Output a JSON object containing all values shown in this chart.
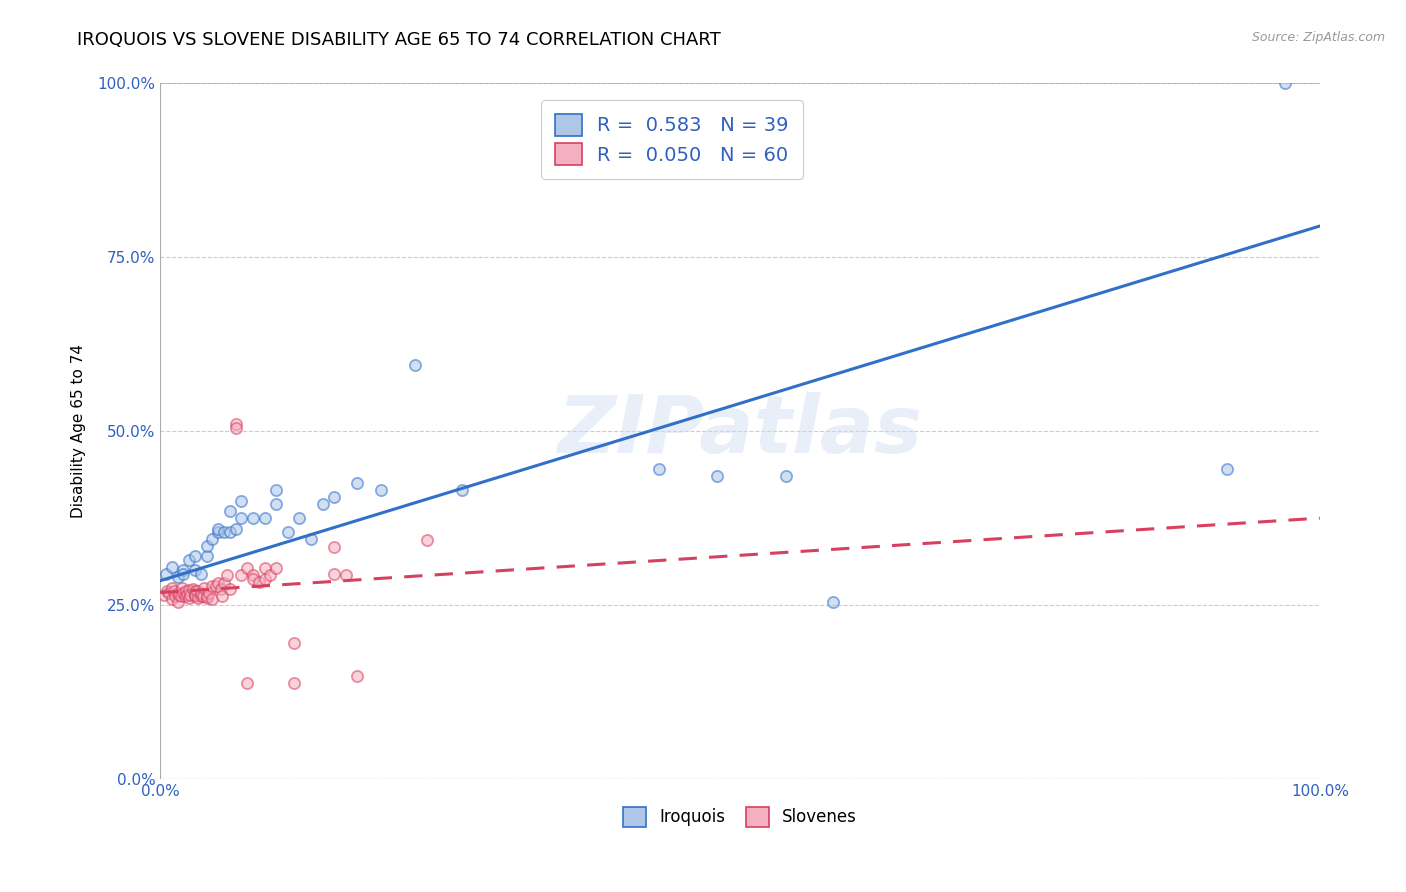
{
  "title": "IROQUOIS VS SLOVENE DISABILITY AGE 65 TO 74 CORRELATION CHART",
  "source": "Source: ZipAtlas.com",
  "ylabel": "Disability Age 65 to 74",
  "xlim": [
    0,
    1.0
  ],
  "ylim": [
    0,
    1.0
  ],
  "ytick_vals": [
    0.0,
    0.25,
    0.5,
    0.75,
    1.0
  ],
  "watermark": "ZIPatlas",
  "legend_iroquois_R": "R =  0.583",
  "legend_iroquois_N": "N = 39",
  "legend_slovene_R": "R =  0.050",
  "legend_slovene_N": "N = 60",
  "iroquois_color": "#aec6e8",
  "iroquois_line_color": "#3070c8",
  "slovene_color": "#f4afc0",
  "slovene_line_color": "#d84060",
  "legend_label_color": "#3060c0",
  "iroquois_x": [
    0.005,
    0.01,
    0.015,
    0.02,
    0.02,
    0.025,
    0.03,
    0.03,
    0.035,
    0.04,
    0.04,
    0.045,
    0.05,
    0.05,
    0.055,
    0.06,
    0.06,
    0.065,
    0.07,
    0.07,
    0.08,
    0.09,
    0.1,
    0.1,
    0.11,
    0.12,
    0.13,
    0.14,
    0.15,
    0.17,
    0.19,
    0.22,
    0.26,
    0.43,
    0.48,
    0.54,
    0.58,
    0.92,
    0.97
  ],
  "iroquois_y": [
    0.295,
    0.305,
    0.29,
    0.3,
    0.295,
    0.315,
    0.3,
    0.32,
    0.295,
    0.32,
    0.335,
    0.345,
    0.355,
    0.36,
    0.355,
    0.355,
    0.385,
    0.36,
    0.375,
    0.4,
    0.375,
    0.375,
    0.395,
    0.415,
    0.355,
    0.375,
    0.345,
    0.395,
    0.405,
    0.425,
    0.415,
    0.595,
    0.415,
    0.445,
    0.435,
    0.435,
    0.255,
    0.445,
    1.0
  ],
  "slovene_x": [
    0.003,
    0.006,
    0.008,
    0.01,
    0.01,
    0.012,
    0.013,
    0.015,
    0.015,
    0.016,
    0.018,
    0.019,
    0.02,
    0.021,
    0.022,
    0.023,
    0.025,
    0.025,
    0.026,
    0.028,
    0.03,
    0.03,
    0.03,
    0.032,
    0.033,
    0.035,
    0.035,
    0.037,
    0.038,
    0.04,
    0.04,
    0.042,
    0.045,
    0.045,
    0.048,
    0.05,
    0.052,
    0.053,
    0.055,
    0.058,
    0.06,
    0.065,
    0.065,
    0.07,
    0.075,
    0.075,
    0.08,
    0.08,
    0.085,
    0.09,
    0.09,
    0.095,
    0.1,
    0.115,
    0.115,
    0.15,
    0.15,
    0.16,
    0.17,
    0.23
  ],
  "slovene_y": [
    0.265,
    0.27,
    0.268,
    0.275,
    0.258,
    0.27,
    0.263,
    0.268,
    0.255,
    0.265,
    0.263,
    0.275,
    0.268,
    0.263,
    0.27,
    0.265,
    0.26,
    0.272,
    0.265,
    0.273,
    0.263,
    0.27,
    0.265,
    0.27,
    0.26,
    0.263,
    0.268,
    0.263,
    0.275,
    0.26,
    0.263,
    0.268,
    0.278,
    0.258,
    0.278,
    0.282,
    0.273,
    0.263,
    0.282,
    0.293,
    0.273,
    0.51,
    0.505,
    0.293,
    0.303,
    0.138,
    0.293,
    0.288,
    0.283,
    0.288,
    0.303,
    0.293,
    0.303,
    0.195,
    0.138,
    0.295,
    0.333,
    0.293,
    0.148,
    0.343
  ],
  "iroquois_line_x": [
    0.0,
    1.0
  ],
  "iroquois_line_y": [
    0.285,
    0.795
  ],
  "slovene_line_x": [
    0.0,
    1.0
  ],
  "slovene_line_y": [
    0.268,
    0.375
  ],
  "background_color": "#ffffff",
  "grid_color": "#cccccc",
  "title_fontsize": 13,
  "axis_label_fontsize": 11,
  "tick_fontsize": 11,
  "dot_size": 65,
  "dot_alpha": 0.55,
  "dot_linewidth": 1.3
}
